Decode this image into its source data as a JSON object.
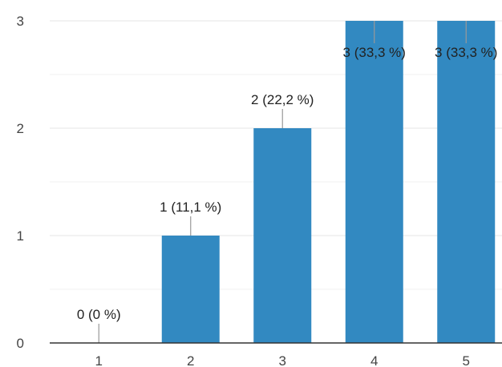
{
  "chart_data": {
    "type": "bar",
    "categories": [
      "1",
      "2",
      "3",
      "4",
      "5"
    ],
    "values": [
      0,
      1,
      2,
      3,
      3
    ],
    "data_labels": [
      "0 (0 %)",
      "1 (11,1 %)",
      "2 (22,2 %)",
      "3 (33,3 %)",
      "3 (33,3 %)"
    ],
    "y_ticks": [
      "0",
      "1",
      "2",
      "3"
    ],
    "ylim": [
      0,
      3
    ],
    "grid": true,
    "bar_color": "#3289c1"
  }
}
